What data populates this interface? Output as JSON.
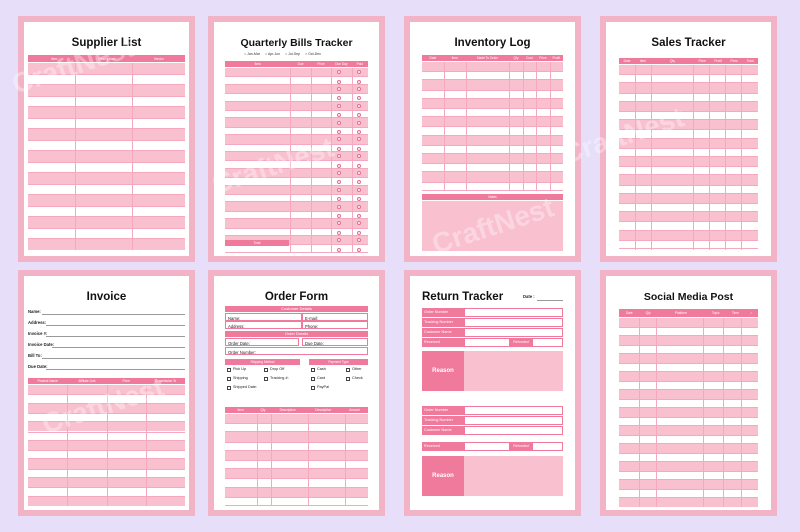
{
  "colors": {
    "background": "#e7defa",
    "card": "#f2b3c7",
    "accent": "#f07a9c",
    "row_pink": "#f9c0d0"
  },
  "supplier": {
    "title": "Supplier List",
    "headers": [
      "Item",
      "Description",
      "Vendor"
    ]
  },
  "bills": {
    "title": "Quarterly Bills Tracker",
    "quarters": [
      "Jan-Mar",
      "Apr-Jun",
      "Jul-Sep",
      "Oct-Dec"
    ],
    "headers": [
      "Item",
      "Due",
      "Price",
      "Due Day",
      "Paid"
    ],
    "total_label": "Total"
  },
  "inventory": {
    "title": "Inventory Log",
    "headers": [
      "Date",
      "Item",
      "Made To Order",
      "Qty",
      "Cost",
      "Price",
      "Profit"
    ],
    "notes_label": "Notes"
  },
  "sales": {
    "title": "Sales Tracker",
    "headers": [
      "Date",
      "Item",
      "Qty",
      "Price",
      "Profit",
      "Fees",
      "Total"
    ]
  },
  "invoice": {
    "title": "Invoice",
    "fields": [
      "Name:",
      "Address:",
      "Invoice #:",
      "Invoice Date:",
      "Bill To:",
      "Due Date:"
    ],
    "headers": [
      "Product Name",
      "Affiliate Link",
      "Price",
      "Commission %"
    ]
  },
  "order": {
    "title": "Order Form",
    "customer_details": "Customer Details",
    "name": "Name:",
    "email": "E-mail:",
    "address": "Address:",
    "phone": "Phone:",
    "order_details": "Order Details",
    "order_date": "Order Date:",
    "due_date": "Due Date:",
    "order_number": "Order Number:",
    "shipping_method": "Shipping Method",
    "payment_type": "Payment Type",
    "shipping_options": [
      "Pick Up",
      "Drop Off",
      "Shipping",
      "Tracking #:",
      "Shipped Date:"
    ],
    "payment_options": [
      "Cash",
      "Other",
      "Card",
      "Check",
      "PayPal"
    ],
    "headers": [
      "Item",
      "Qty",
      "Description",
      "Description",
      "Amount"
    ]
  },
  "returns": {
    "title": "Return Tracker",
    "date_label": "Date :",
    "fields": [
      "Order Number",
      "Tracking Number",
      "Customer Name",
      "Received"
    ],
    "refunded": "Refunded",
    "reason": "Reason"
  },
  "social": {
    "title": "Social Media Post",
    "headers": [
      "Date",
      "Qty",
      "Platform",
      "Topic",
      "Time",
      "✓"
    ]
  },
  "watermark": "CraftNest"
}
